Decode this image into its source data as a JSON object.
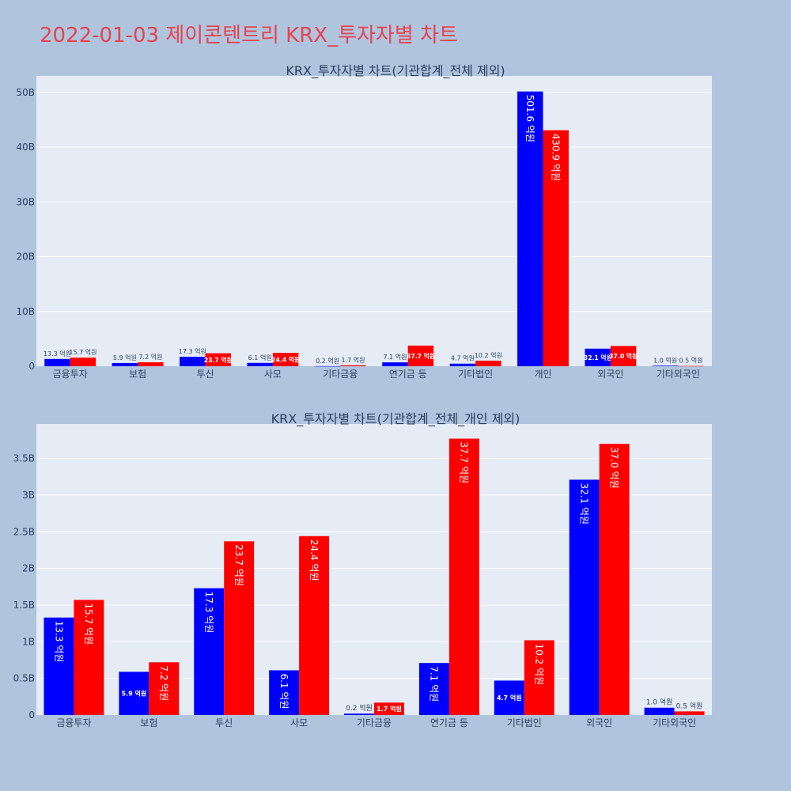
{
  "page": {
    "title": "2022-01-03 제이콘텐트리 KRX_투자자별 차트"
  },
  "colors": {
    "series_a": "#0000ff",
    "series_b": "#ff0000",
    "plot_bg": "#e5ecf6",
    "page_bg": "#b0c4de",
    "title": "#e8434e"
  },
  "chart_data": [
    {
      "type": "bar",
      "title": "KRX_투자자별 차트(기관합계_전체 제외)",
      "categories": [
        "금융투자",
        "보험",
        "투신",
        "사모",
        "기타금융",
        "연기금 등",
        "기타법인",
        "개인",
        "외국인",
        "기타외국인"
      ],
      "series": [
        {
          "values": [
            1.33,
            0.59,
            1.73,
            0.61,
            0.02,
            0.71,
            0.47,
            50.16,
            3.21,
            0.1
          ],
          "labels": [
            "13.3 억원",
            "5.9 억원",
            "17.3 억원",
            "6.1 억원",
            "0.2 억원",
            "7.1 억원",
            "4.7 억원",
            "501.6 억원",
            "32.1 억원",
            "1.0 억원"
          ]
        },
        {
          "values": [
            1.57,
            0.72,
            2.37,
            2.44,
            0.17,
            3.77,
            1.02,
            43.09,
            3.7,
            0.05
          ],
          "labels": [
            "15.7 억원",
            "7.2 억원",
            "23.7 억원",
            "24.4 억원",
            "1.7 억원",
            "37.7 억원",
            "10.2 억원",
            "430.9 억원",
            "37.0 억원",
            "0.5 억원"
          ]
        }
      ],
      "ylim": [
        0,
        53
      ],
      "yticks": [
        0,
        10,
        20,
        30,
        40,
        50
      ],
      "ytick_labels": [
        "0",
        "10B",
        "20B",
        "30B",
        "40B",
        "50B"
      ],
      "grid": true
    },
    {
      "type": "bar",
      "title": "KRX_투자자별 차트(기관합계_전체_개인 제외)",
      "categories": [
        "금융투자",
        "보험",
        "투신",
        "사모",
        "기타금융",
        "연기금 등",
        "기타법인",
        "외국인",
        "기타외국인"
      ],
      "series": [
        {
          "values": [
            1.33,
            0.59,
            1.73,
            0.61,
            0.02,
            0.71,
            0.47,
            3.21,
            0.1
          ],
          "labels": [
            "13.3 억원",
            "5.9 억원",
            "17.3 억원",
            "6.1 억원",
            "0.2 억원",
            "7.1 억원",
            "4.7 억원",
            "32.1 억원",
            "1.0 억원"
          ]
        },
        {
          "values": [
            1.57,
            0.72,
            2.37,
            2.44,
            0.17,
            3.77,
            1.02,
            3.7,
            0.05
          ],
          "labels": [
            "15.7 억원",
            "7.2 억원",
            "23.7 억원",
            "24.4 억원",
            "1.7 억원",
            "37.7 억원",
            "10.2 억원",
            "37.0 억원",
            "0.5 억원"
          ]
        }
      ],
      "ylim": [
        0,
        3.97
      ],
      "yticks": [
        0,
        0.5,
        1,
        1.5,
        2,
        2.5,
        3,
        3.5
      ],
      "ytick_labels": [
        "0",
        "0.5B",
        "1B",
        "1.5B",
        "2B",
        "2.5B",
        "3B",
        "3.5B"
      ],
      "grid": true
    }
  ]
}
